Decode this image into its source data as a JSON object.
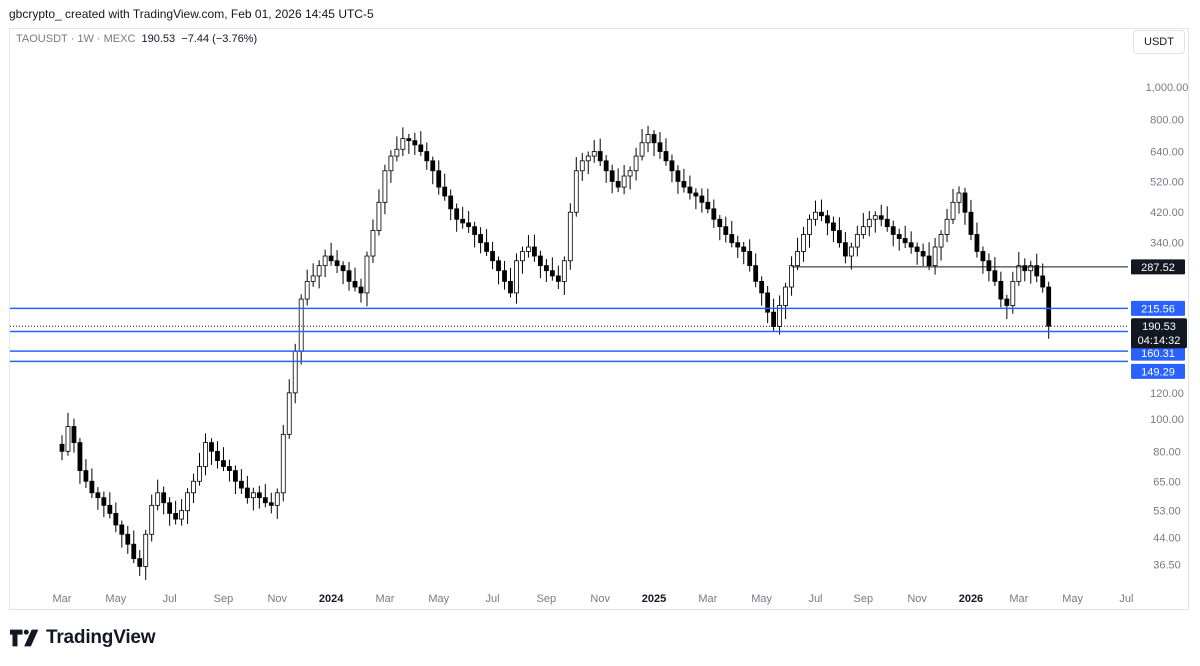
{
  "header": {
    "caption": "gbcrypto_ created with TradingView.com, Feb 01, 2026 14:45 UTC-5"
  },
  "symbol_bar": {
    "symbol": "TAOUSDT",
    "interval": "1W",
    "exchange": "MEXC",
    "last": "190.53",
    "change": "−7.44 (−3.76%)",
    "separator": " · "
  },
  "currency_button": "USDT",
  "brand": {
    "name": "TradingView",
    "color": "#131722"
  },
  "chart_data": {
    "type": "candlestick",
    "scale": "log",
    "ylim": [
      31,
      1250
    ],
    "y_ticks": [
      {
        "v": 1000,
        "label": "1,000.00"
      },
      {
        "v": 800,
        "label": "800.00"
      },
      {
        "v": 640,
        "label": "640.00"
      },
      {
        "v": 520,
        "label": "520.00"
      },
      {
        "v": 420,
        "label": "420.00"
      },
      {
        "v": 340,
        "label": "340.00"
      },
      {
        "v": 120,
        "label": "120.00"
      },
      {
        "v": 100,
        "label": "100.00"
      },
      {
        "v": 80,
        "label": "80.00"
      },
      {
        "v": 65,
        "label": "65.00"
      },
      {
        "v": 53,
        "label": "53.00"
      },
      {
        "v": 44,
        "label": "44.00"
      },
      {
        "v": 36.5,
        "label": "36.50"
      }
    ],
    "x_ticks": [
      {
        "t": 0,
        "label": "Mar"
      },
      {
        "t": 9,
        "label": "May"
      },
      {
        "t": 18,
        "label": "Jul"
      },
      {
        "t": 27,
        "label": "Sep"
      },
      {
        "t": 36,
        "label": "Nov"
      },
      {
        "t": 45,
        "label": "2024",
        "bold": true
      },
      {
        "t": 54,
        "label": "Mar"
      },
      {
        "t": 63,
        "label": "May"
      },
      {
        "t": 72,
        "label": "Jul"
      },
      {
        "t": 81,
        "label": "Sep"
      },
      {
        "t": 90,
        "label": "Nov"
      },
      {
        "t": 99,
        "label": "2025",
        "bold": true
      },
      {
        "t": 108,
        "label": "Mar"
      },
      {
        "t": 117,
        "label": "May"
      },
      {
        "t": 126,
        "label": "Jul"
      },
      {
        "t": 134,
        "label": "Sep"
      },
      {
        "t": 143,
        "label": "Nov"
      },
      {
        "t": 152,
        "label": "2026",
        "bold": true
      },
      {
        "t": 160,
        "label": "Mar"
      },
      {
        "t": 169,
        "label": "May"
      },
      {
        "t": 178,
        "label": "Jul"
      }
    ],
    "levels": [
      {
        "value": 215.56,
        "label": "215.56",
        "color": "#2962ff"
      },
      {
        "value": 183.64,
        "label": "183.64",
        "color": "#2962ff"
      },
      {
        "value": 160.31,
        "label": "160.31",
        "color": "#2962ff"
      },
      {
        "value": 149.29,
        "label": "149.29",
        "color": "#2962ff"
      }
    ],
    "segment": {
      "value": 287.52,
      "label": "287.52",
      "start_t": 122
    },
    "last_price": {
      "value": 190.53,
      "label": "190.53",
      "countdown": "04:14:32"
    },
    "candle_colors": {
      "up": "#ffffff",
      "down": "#000000",
      "wick": "#000000"
    },
    "closes": [
      80,
      95,
      85,
      70,
      65,
      60,
      58,
      55,
      52,
      48,
      45,
      42,
      38,
      36,
      45,
      55,
      60,
      56,
      52,
      50,
      53,
      60,
      65,
      72,
      85,
      80,
      75,
      72,
      70,
      65,
      62,
      58,
      60,
      58,
      56,
      55,
      60,
      90,
      120,
      160,
      230,
      260,
      270,
      290,
      310,
      300,
      290,
      280,
      260,
      250,
      240,
      310,
      370,
      450,
      560,
      620,
      650,
      700,
      690,
      670,
      640,
      600,
      560,
      500,
      470,
      430,
      400,
      390,
      380,
      360,
      340,
      320,
      300,
      280,
      260,
      240,
      300,
      320,
      330,
      310,
      290,
      280,
      270,
      260,
      300,
      420,
      560,
      600,
      620,
      640,
      600,
      560,
      520,
      500,
      540,
      560,
      620,
      680,
      720,
      680,
      640,
      600,
      560,
      520,
      500,
      480,
      470,
      450,
      430,
      400,
      380,
      360,
      340,
      330,
      320,
      290,
      260,
      240,
      210,
      190,
      220,
      250,
      290,
      320,
      360,
      400,
      420,
      410,
      390,
      370,
      340,
      310,
      330,
      360,
      380,
      400,
      410,
      400,
      380,
      360,
      350,
      340,
      330,
      320,
      310,
      290,
      330,
      360,
      400,
      450,
      480,
      420,
      360,
      320,
      300,
      280,
      260,
      230,
      220,
      260,
      290,
      280,
      290,
      270,
      250,
      190.53
    ]
  }
}
